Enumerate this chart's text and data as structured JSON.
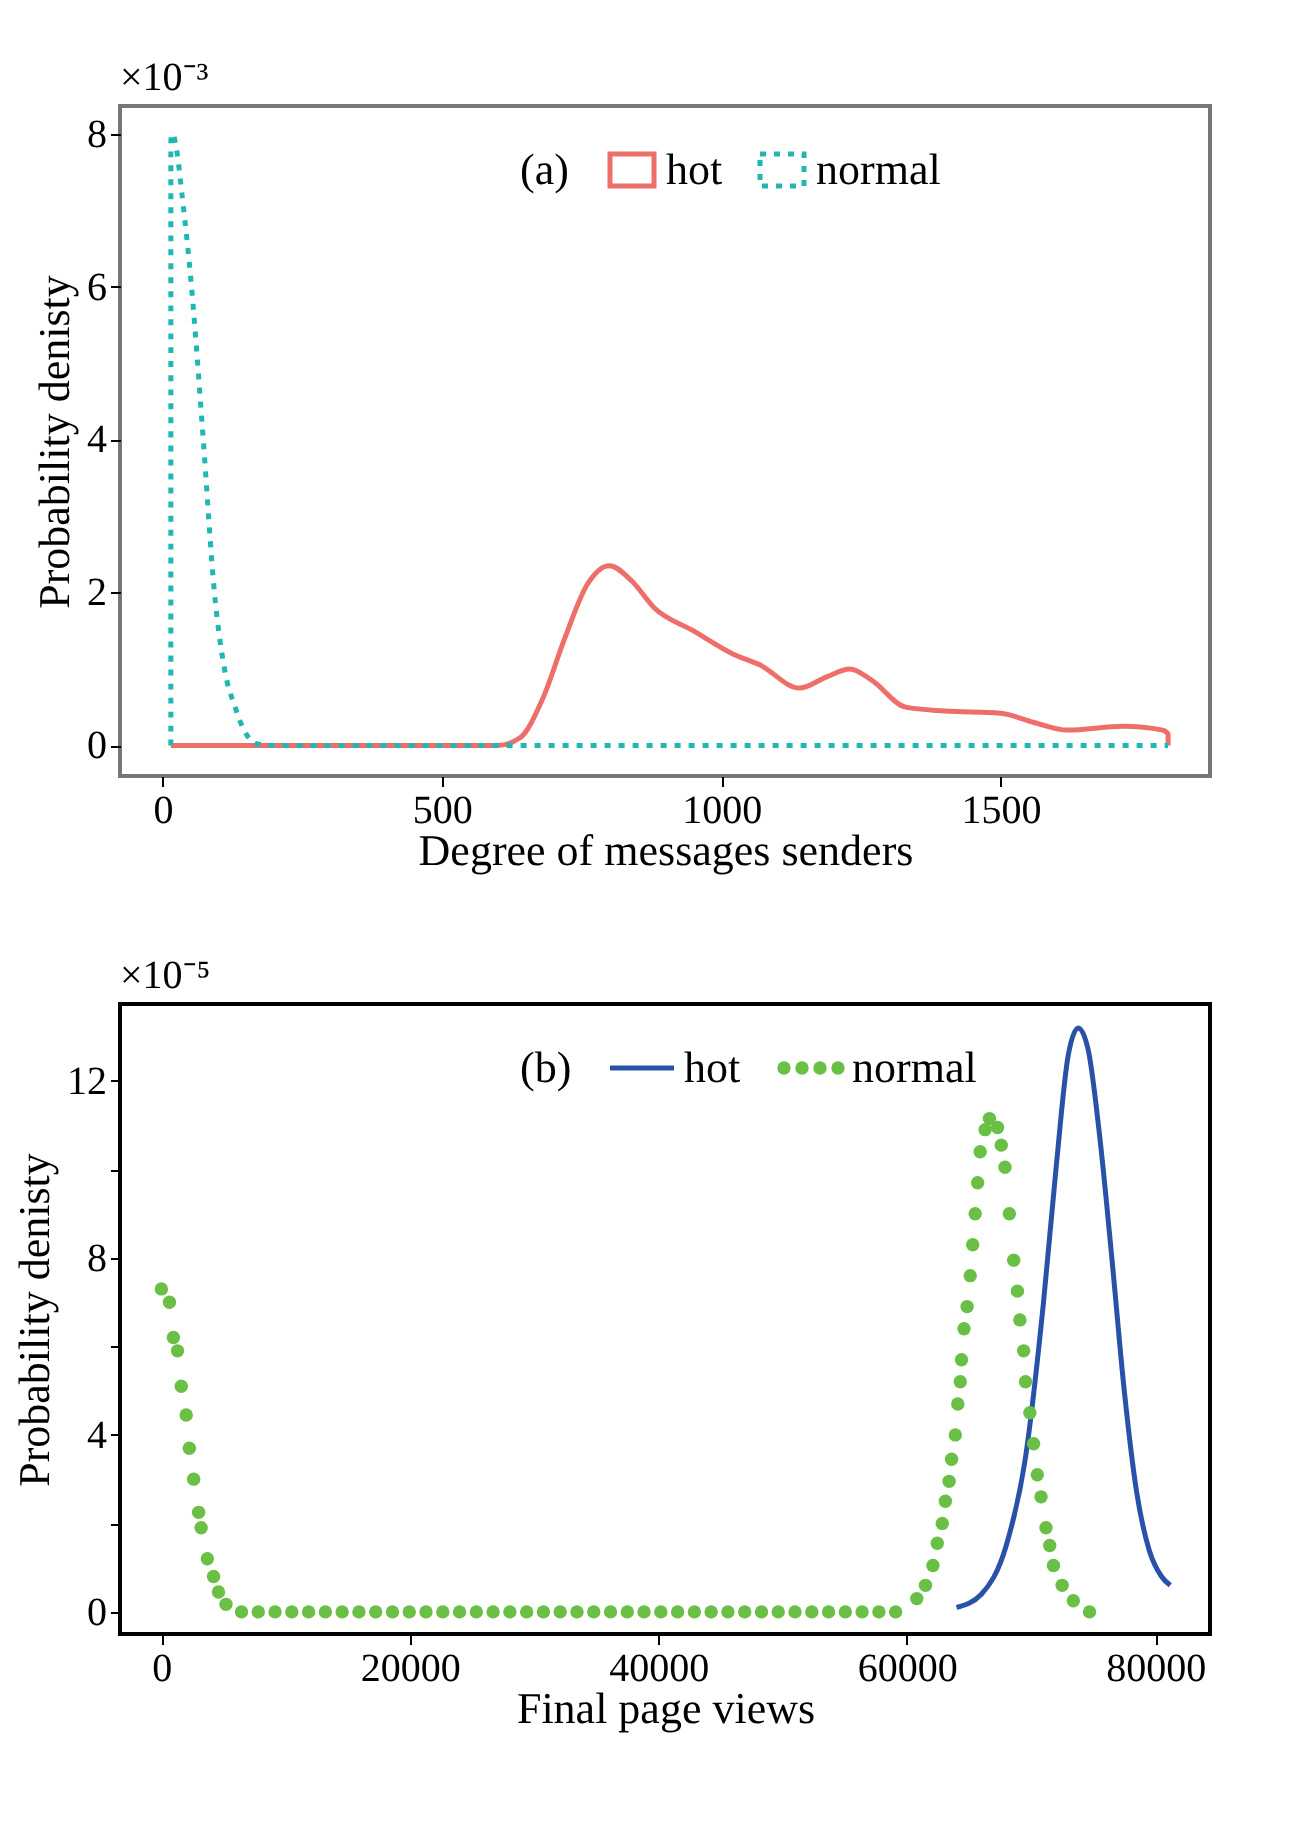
{
  "chart_data": [
    {
      "type": "line",
      "xlabel": "Degree of messages senders",
      "ylabel": "Probability denisty",
      "annotations": [
        "×10⁻³",
        "(a)"
      ],
      "xlim": [
        -76,
        1875
      ],
      "ylim": [
        -0.4,
        8.36
      ],
      "xticks": [
        0,
        500,
        1000,
        1500
      ],
      "yticks": [
        0,
        2,
        4,
        6,
        8
      ],
      "grid": false,
      "legend": "top",
      "series": [
        {
          "name": "hot",
          "color": "#ee6f6a",
          "line_style": "solid",
          "x": [
            15,
            600,
            640,
            680,
            720,
            760,
            800,
            840,
            880,
            950,
            1020,
            1070,
            1140,
            1190,
            1230,
            1270,
            1330,
            1400,
            1500,
            1560,
            1620,
            1720,
            1790,
            1800,
            1800
          ],
          "values": [
            0,
            0,
            0.1,
            0.6,
            1.4,
            2.1,
            2.35,
            2.15,
            1.8,
            1.5,
            1.2,
            1.05,
            0.75,
            0.9,
            1.0,
            0.85,
            0.5,
            0.45,
            0.42,
            0.3,
            0.2,
            0.25,
            0.2,
            0.15,
            0
          ]
        },
        {
          "name": "normal",
          "color": "#1fb7b4",
          "line_style": "dotted",
          "x": [
            15,
            15,
            18,
            25,
            35,
            52,
            73,
            93,
            111,
            130,
            146,
            170,
            200,
            1800
          ],
          "values": [
            0,
            7.9,
            8.0,
            7.8,
            7.2,
            6,
            4,
            2,
            1,
            0.5,
            0.2,
            0.02,
            0,
            0
          ]
        }
      ]
    },
    {
      "type": "line",
      "xlabel": "Final page views",
      "ylabel": "Probability denisty",
      "annotations": [
        "×10⁻⁵",
        "(b)"
      ],
      "xlim": [
        -3330,
        84400
      ],
      "ylim": [
        -0.5,
        13.74
      ],
      "xticks": [
        0,
        20000,
        40000,
        60000,
        80000
      ],
      "yticks": [
        0,
        {
          "value": 2,
          "label": null
        },
        4,
        {
          "value": 6,
          "label": null
        },
        8,
        {
          "value": 10,
          "label": null
        },
        12
      ],
      "grid": false,
      "legend": "top",
      "series": [
        {
          "name": "hot",
          "color": "#2852a8",
          "line_style": "solid",
          "x": [
            64000,
            66000,
            68000,
            69500,
            71000,
            72000,
            73000,
            73800,
            74600,
            75500,
            76500,
            77500,
            78500,
            79500,
            80500,
            81200
          ],
          "values": [
            0.1,
            0.4,
            1.5,
            3.4,
            7.0,
            10.0,
            12.6,
            13.2,
            12.7,
            10.8,
            8.0,
            5.0,
            2.7,
            1.4,
            0.8,
            0.6
          ]
        },
        {
          "name": "normal",
          "color": "#6abf45",
          "type": "scatter",
          "marker": "circle",
          "x": [
            0,
            650,
            970,
            1300,
            1600,
            2000,
            2250,
            2600,
            3000,
            3200,
            3700,
            4200,
            4600,
            5200,
            6450,
            7800,
            9150,
            10500,
            11850,
            13200,
            14550,
            15900,
            17250,
            18600,
            19950,
            21300,
            22650,
            24000,
            25350,
            26700,
            28050,
            29400,
            30750,
            32100,
            33450,
            34800,
            36150,
            37500,
            38850,
            40200,
            41550,
            42900,
            44250,
            45600,
            46950,
            48300,
            49650,
            51000,
            52350,
            53700,
            55050,
            56400,
            57750,
            59100,
            60800,
            61500,
            62100,
            62450,
            62850,
            63100,
            63400,
            63600,
            63900,
            64100,
            64300,
            64400,
            64600,
            64850,
            65100,
            65300,
            65500,
            65700,
            65900,
            66300,
            66650,
            67300,
            67600,
            67900,
            68250,
            68600,
            68900,
            69100,
            69400,
            69550,
            69900,
            70200,
            70500,
            70800,
            71200,
            71500,
            71800,
            72500,
            73400,
            74700
          ],
          "values": [
            7.3,
            7.0,
            6.2,
            5.9,
            5.1,
            4.45,
            3.7,
            3.0,
            2.25,
            1.9,
            1.2,
            0.8,
            0.45,
            0.17,
            0,
            0,
            0,
            0,
            0,
            0,
            0,
            0,
            0,
            0,
            0,
            0,
            0,
            0,
            0,
            0,
            0,
            0,
            0,
            0,
            0,
            0,
            0,
            0,
            0,
            0,
            0,
            0,
            0,
            0,
            0,
            0,
            0,
            0,
            0,
            0,
            0,
            0,
            0,
            0,
            0.3,
            0.6,
            1.05,
            1.55,
            2.0,
            2.5,
            2.95,
            3.45,
            4.0,
            4.7,
            5.2,
            5.7,
            6.4,
            6.9,
            7.6,
            8.3,
            9.0,
            9.7,
            10.4,
            10.9,
            11.15,
            10.95,
            10.55,
            10.05,
            9.0,
            7.95,
            7.25,
            6.6,
            5.9,
            5.2,
            4.5,
            3.8,
            3.1,
            2.6,
            1.9,
            1.5,
            1.05,
            0.6,
            0.25,
            0
          ]
        }
      ]
    }
  ]
}
